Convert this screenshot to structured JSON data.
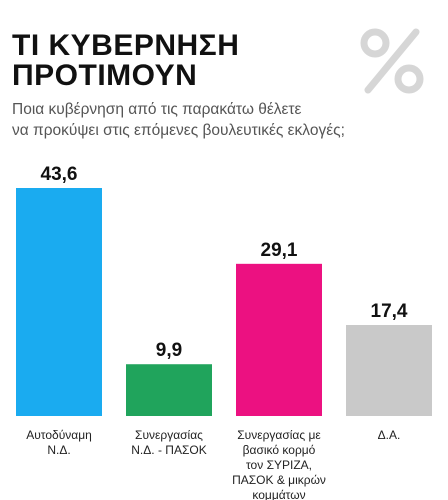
{
  "title_lines": [
    "ΤΙ ΚΥΒΕΡΝΗΣΗ",
    "ΠΡΟΤΙΜΟΥΝ"
  ],
  "subtitle_lines": [
    "Ποια κυβέρνηση από τις παρακάτω θέλετε",
    "να προκύψει στις επόμενες βουλευτικές εκλογές;"
  ],
  "icon": "percent-icon",
  "chart_data": {
    "type": "bar",
    "title": "ΤΙ ΚΥΒΕΡΝΗΣΗ ΠΡΟΤΙΜΟΥΝ",
    "subtitle": "Ποια κυβέρνηση από τις παρακάτω θέλετε να προκύψει στις επόμενες βουλευτικές εκλογές;",
    "unit": "%",
    "categories": [
      "Αυτοδύναμη Ν.Δ.",
      "Συνεργασίας Ν.Δ. - ΠΑΣΟΚ",
      "Συνεργασίας με βασικό κορμό τον ΣΥΡΙΖΑ, ΠΑΣΟΚ & μικρών κομμάτων",
      "Δ.Α."
    ],
    "category_label_lines": [
      [
        "Αυτοδύναμη",
        "Ν.Δ."
      ],
      [
        "Συνεργασίας",
        "Ν.Δ. - ΠΑΣΟΚ"
      ],
      [
        "Συνεργασίας με",
        "βασικό κορμό",
        "τον ΣΥΡΙΖΑ,",
        "ΠΑΣΟΚ & μικρών",
        "κομμάτων"
      ],
      [
        "Δ.Α."
      ]
    ],
    "values": [
      43.6,
      9.9,
      29.1,
      17.4
    ],
    "value_labels": [
      "43,6",
      "9,9",
      "29,1",
      "17,4"
    ],
    "colors": [
      "#1aabf0",
      "#20a45c",
      "#ec1181",
      "#c9c9c9"
    ],
    "ylim": [
      0,
      43.6
    ],
    "grid": false,
    "legend": "none"
  }
}
